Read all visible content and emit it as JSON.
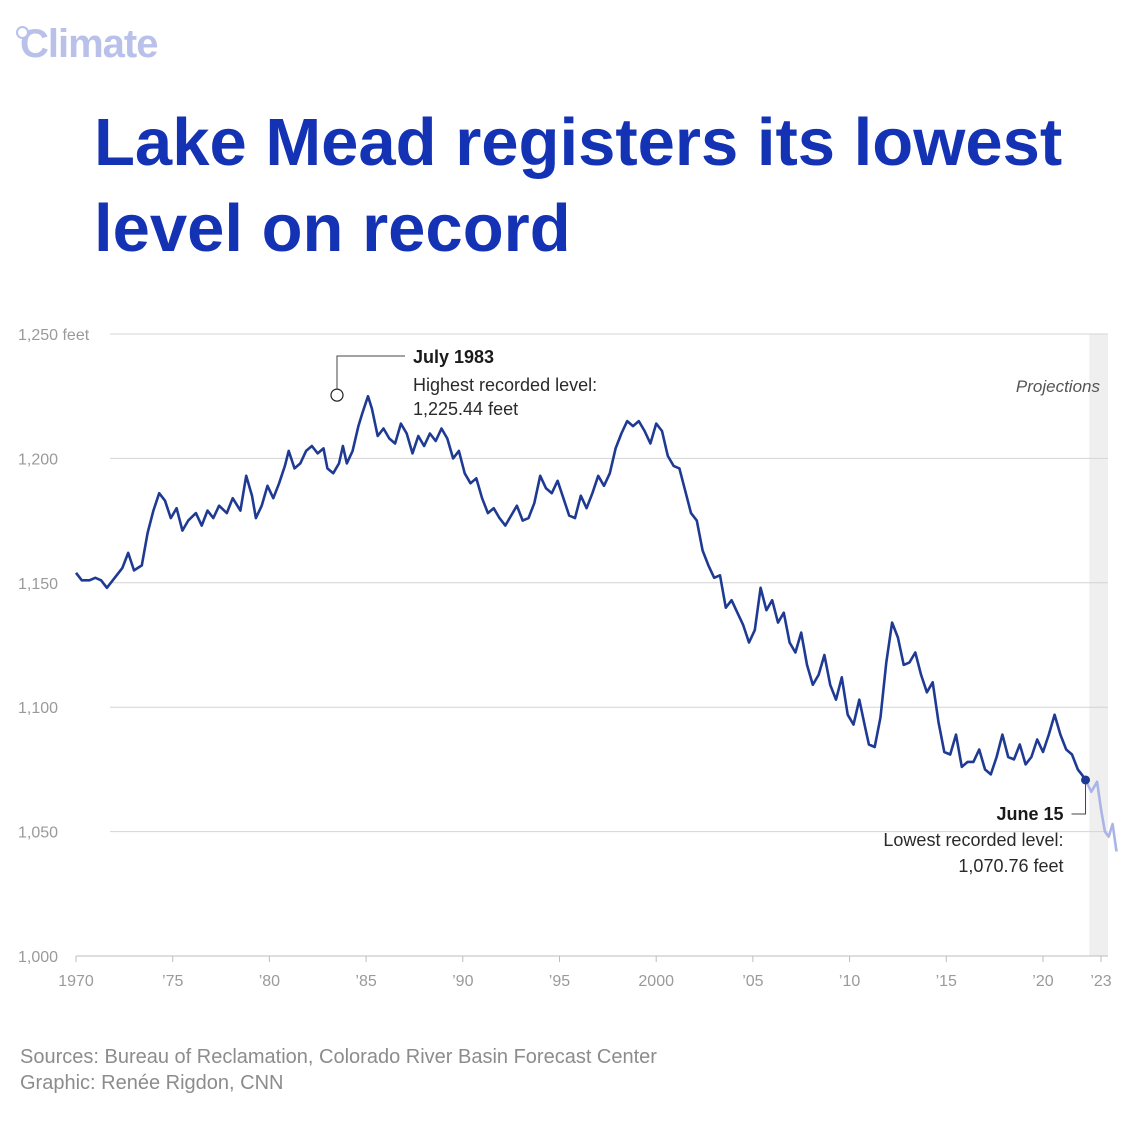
{
  "brand": "Climate",
  "chart_data": {
    "type": "line",
    "title": "Lake Mead registers its lowest level on record",
    "xlim": [
      1970,
      2023.2
    ],
    "ylim": [
      1000,
      1250
    ],
    "y_ticks": [
      {
        "value": 1250,
        "label": "1,250 feet"
      },
      {
        "value": 1200,
        "label": "1,200"
      },
      {
        "value": 1150,
        "label": "1,150"
      },
      {
        "value": 1100,
        "label": "1,100"
      },
      {
        "value": 1050,
        "label": "1,050"
      },
      {
        "value": 1000,
        "label": "1,000"
      }
    ],
    "x_ticks": [
      {
        "value": 1970,
        "label": "1970"
      },
      {
        "value": 1975,
        "label": "’75"
      },
      {
        "value": 1980,
        "label": "’80"
      },
      {
        "value": 1985,
        "label": "’85"
      },
      {
        "value": 1990,
        "label": "’90"
      },
      {
        "value": 1995,
        "label": "’95"
      },
      {
        "value": 2000,
        "label": "2000"
      },
      {
        "value": 2005,
        "label": "’05"
      },
      {
        "value": 2010,
        "label": "’10"
      },
      {
        "value": 2015,
        "label": "’15"
      },
      {
        "value": 2020,
        "label": "’20"
      },
      {
        "value": 2023,
        "label": "’23"
      }
    ],
    "grid": true,
    "projection_region": {
      "start": 2022.5,
      "end": 2023.2,
      "label": "Projections"
    },
    "series": [
      {
        "role": "observed",
        "color": "#1f3a93",
        "points": [
          [
            1970.0,
            1154
          ],
          [
            1970.3,
            1151
          ],
          [
            1970.7,
            1151
          ],
          [
            1971.0,
            1152
          ],
          [
            1971.3,
            1151
          ],
          [
            1971.6,
            1148
          ],
          [
            1972.0,
            1152
          ],
          [
            1972.4,
            1156
          ],
          [
            1972.7,
            1162
          ],
          [
            1973.0,
            1155
          ],
          [
            1973.4,
            1157
          ],
          [
            1973.7,
            1170
          ],
          [
            1974.0,
            1179
          ],
          [
            1974.3,
            1186
          ],
          [
            1974.6,
            1183
          ],
          [
            1974.9,
            1176
          ],
          [
            1975.2,
            1180
          ],
          [
            1975.5,
            1171
          ],
          [
            1975.8,
            1175
          ],
          [
            1976.2,
            1178
          ],
          [
            1976.5,
            1173
          ],
          [
            1976.8,
            1179
          ],
          [
            1977.1,
            1176
          ],
          [
            1977.4,
            1181
          ],
          [
            1977.8,
            1178
          ],
          [
            1978.1,
            1184
          ],
          [
            1978.5,
            1179
          ],
          [
            1978.8,
            1193
          ],
          [
            1979.1,
            1185
          ],
          [
            1979.3,
            1176
          ],
          [
            1979.6,
            1181
          ],
          [
            1979.9,
            1189
          ],
          [
            1980.2,
            1184
          ],
          [
            1980.5,
            1190
          ],
          [
            1980.8,
            1197
          ],
          [
            1981.0,
            1203
          ],
          [
            1981.3,
            1196
          ],
          [
            1981.6,
            1198
          ],
          [
            1981.9,
            1203
          ],
          [
            1982.2,
            1205
          ],
          [
            1982.5,
            1202
          ],
          [
            1982.8,
            1204
          ],
          [
            1983.0,
            1196
          ],
          [
            1983.3,
            1194
          ],
          [
            1983.6,
            1198
          ],
          [
            1983.8,
            1205
          ],
          [
            1984.0,
            1198
          ],
          [
            1984.3,
            1203
          ],
          [
            1984.6,
            1213
          ],
          [
            1984.8,
            1218
          ],
          [
            1985.1,
            1225
          ],
          [
            1985.3,
            1220
          ],
          [
            1985.6,
            1209
          ],
          [
            1985.9,
            1212
          ],
          [
            1986.2,
            1208
          ],
          [
            1986.5,
            1206
          ],
          [
            1986.8,
            1214
          ],
          [
            1987.1,
            1210
          ],
          [
            1987.4,
            1202
          ],
          [
            1987.7,
            1209
          ],
          [
            1988.0,
            1205
          ],
          [
            1988.3,
            1210
          ],
          [
            1988.6,
            1207
          ],
          [
            1988.9,
            1212
          ],
          [
            1989.2,
            1208
          ],
          [
            1989.5,
            1200
          ],
          [
            1989.8,
            1203
          ],
          [
            1990.1,
            1194
          ],
          [
            1990.4,
            1190
          ],
          [
            1990.7,
            1192
          ],
          [
            1991.0,
            1184
          ],
          [
            1991.3,
            1178
          ],
          [
            1991.6,
            1180
          ],
          [
            1991.9,
            1176
          ],
          [
            1992.2,
            1173
          ],
          [
            1992.5,
            1177
          ],
          [
            1992.8,
            1181
          ],
          [
            1993.1,
            1175
          ],
          [
            1993.4,
            1176
          ],
          [
            1993.7,
            1182
          ],
          [
            1994.0,
            1193
          ],
          [
            1994.3,
            1188
          ],
          [
            1994.6,
            1186
          ],
          [
            1994.9,
            1191
          ],
          [
            1995.2,
            1184
          ],
          [
            1995.5,
            1177
          ],
          [
            1995.8,
            1176
          ],
          [
            1996.1,
            1185
          ],
          [
            1996.4,
            1180
          ],
          [
            1996.7,
            1186
          ],
          [
            1997.0,
            1193
          ],
          [
            1997.3,
            1189
          ],
          [
            1997.6,
            1194
          ],
          [
            1997.9,
            1204
          ],
          [
            1998.2,
            1210
          ],
          [
            1998.5,
            1215
          ],
          [
            1998.8,
            1213
          ],
          [
            1999.1,
            1215
          ],
          [
            1999.4,
            1211
          ],
          [
            1999.7,
            1206
          ],
          [
            2000.0,
            1214
          ],
          [
            2000.3,
            1211
          ],
          [
            2000.6,
            1201
          ],
          [
            2000.9,
            1197
          ],
          [
            2001.2,
            1196
          ],
          [
            2001.5,
            1187
          ],
          [
            2001.8,
            1178
          ],
          [
            2002.1,
            1175
          ],
          [
            2002.4,
            1163
          ],
          [
            2002.7,
            1157
          ],
          [
            2003.0,
            1152
          ],
          [
            2003.3,
            1153
          ],
          [
            2003.6,
            1140
          ],
          [
            2003.9,
            1143
          ],
          [
            2004.2,
            1138
          ],
          [
            2004.5,
            1133
          ],
          [
            2004.8,
            1126
          ],
          [
            2005.1,
            1131
          ],
          [
            2005.4,
            1148
          ],
          [
            2005.7,
            1139
          ],
          [
            2006.0,
            1143
          ],
          [
            2006.3,
            1134
          ],
          [
            2006.6,
            1138
          ],
          [
            2006.9,
            1126
          ],
          [
            2007.2,
            1122
          ],
          [
            2007.5,
            1130
          ],
          [
            2007.8,
            1117
          ],
          [
            2008.1,
            1109
          ],
          [
            2008.4,
            1113
          ],
          [
            2008.7,
            1121
          ],
          [
            2009.0,
            1109
          ],
          [
            2009.3,
            1103
          ],
          [
            2009.6,
            1112
          ],
          [
            2009.9,
            1097
          ],
          [
            2010.2,
            1093
          ],
          [
            2010.5,
            1103
          ],
          [
            2010.8,
            1092
          ],
          [
            2011.0,
            1085
          ],
          [
            2011.3,
            1084
          ],
          [
            2011.6,
            1096
          ],
          [
            2011.9,
            1118
          ],
          [
            2012.2,
            1134
          ],
          [
            2012.5,
            1128
          ],
          [
            2012.8,
            1117
          ],
          [
            2013.1,
            1118
          ],
          [
            2013.4,
            1122
          ],
          [
            2013.7,
            1113
          ],
          [
            2014.0,
            1106
          ],
          [
            2014.3,
            1110
          ],
          [
            2014.6,
            1094
          ],
          [
            2014.9,
            1082
          ],
          [
            2015.2,
            1081
          ],
          [
            2015.5,
            1089
          ],
          [
            2015.8,
            1076
          ],
          [
            2016.1,
            1078
          ],
          [
            2016.4,
            1078
          ],
          [
            2016.7,
            1083
          ],
          [
            2017.0,
            1075
          ],
          [
            2017.3,
            1073
          ],
          [
            2017.6,
            1080
          ],
          [
            2017.9,
            1089
          ],
          [
            2018.2,
            1080
          ],
          [
            2018.5,
            1079
          ],
          [
            2018.8,
            1085
          ],
          [
            2019.1,
            1077
          ],
          [
            2019.4,
            1080
          ],
          [
            2019.7,
            1087
          ],
          [
            2020.0,
            1082
          ],
          [
            2020.3,
            1089
          ],
          [
            2020.6,
            1097
          ],
          [
            2020.9,
            1089
          ],
          [
            2021.2,
            1083
          ],
          [
            2021.5,
            1081
          ],
          [
            2021.8,
            1075
          ],
          [
            2022.0,
            1073
          ],
          [
            2022.2,
            1070.8
          ]
        ]
      },
      {
        "role": "projection",
        "color": "#aab4e6",
        "points": [
          [
            2022.2,
            1070.8
          ],
          [
            2022.5,
            1066
          ],
          [
            2022.8,
            1070
          ],
          [
            2023.0,
            1059
          ],
          [
            2023.2,
            1050
          ],
          [
            2023.4,
            1048
          ],
          [
            2023.6,
            1053
          ],
          [
            2023.8,
            1042
          ]
        ]
      }
    ],
    "annotations": [
      {
        "x": 1983.5,
        "y": 1225.44,
        "title": "July 1983",
        "line1": "Highest recorded level:",
        "line2": "1,225.44 feet"
      },
      {
        "x": 2022.2,
        "y": 1070.76,
        "title": "June 15",
        "line1": "Lowest recorded level:",
        "line2": "1,070.76 feet"
      }
    ]
  },
  "footer": {
    "sources": "Sources: Bureau of Reclamation, Colorado River Basin Forecast Center",
    "graphic": "Graphic: Renée Rigdon, CNN"
  }
}
